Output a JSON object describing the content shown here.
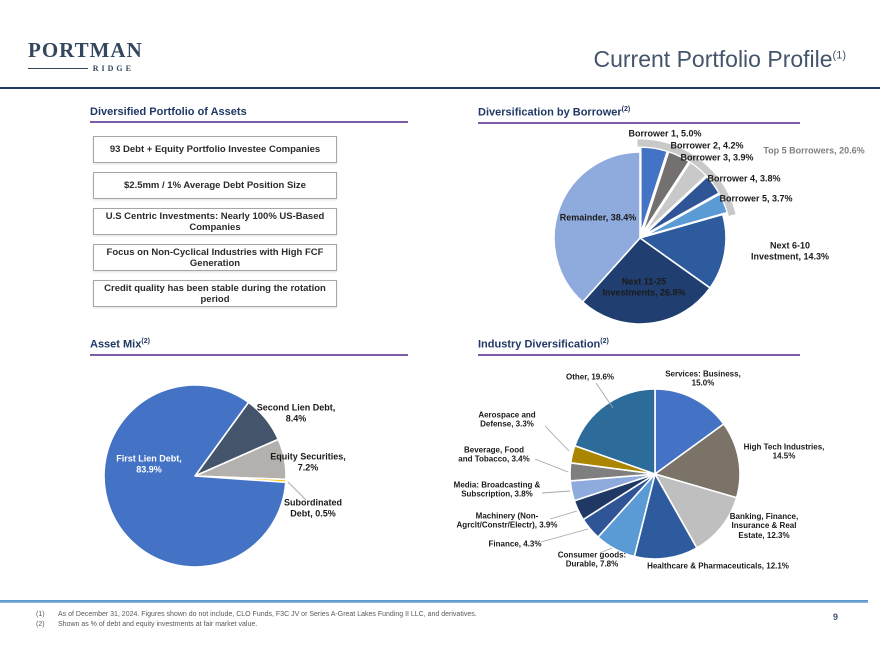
{
  "slide": {
    "logo": {
      "line1": "PORTMAN",
      "line2": "RIDGE"
    },
    "title": {
      "text": "Current Portfolio Profile",
      "superscript": "(1)"
    },
    "page_number": "9",
    "footnotes": [
      {
        "marker": "(1)",
        "text": "As of December 31, 2024. Figures shown do not include, CLO Funds, F3C JV or Series A-Great Lakes Funding II LLC, and derivatives."
      },
      {
        "marker": "(2)",
        "text": "Shown as % of debt and equity investments at fair market value."
      }
    ]
  },
  "sections": {
    "portfolio": {
      "heading": "Diversified Portfolio of Assets",
      "boxes": [
        "93 Debt + Equity Portfolio Investee Companies",
        "$2.5mm / 1% Average Debt Position Size",
        "U.S Centric Investments: Nearly 100% US-Based Companies",
        "Focus on Non-Cyclical Industries with High FCF Generation",
        "Credit quality has been stable during the rotation period"
      ]
    },
    "borrower": {
      "heading": "Diversification by Borrower",
      "superscript": "(2)"
    },
    "asset_mix": {
      "heading": "Asset Mix",
      "superscript": "(2)"
    },
    "industry": {
      "heading": "Industry Diversification",
      "superscript": "(2)"
    }
  },
  "colors": {
    "header_rule": "#24395e",
    "heading_text": "#1f3864",
    "heading_underline": "#7a5da6",
    "footer_rule": "#5b9bd5",
    "title_text": "#44546a",
    "footnote_text": "#595959",
    "annotation_gray": "#7f7f7f",
    "box_border": "#a6a6a6"
  },
  "chart_data": [
    {
      "id": "borrower",
      "type": "pie",
      "title": "Diversification by Borrower",
      "start_angle": 0,
      "slices": [
        {
          "label": "Borrower 1",
          "value": 5.0,
          "color": "#4472c4"
        },
        {
          "label": "Borrower 2",
          "value": 4.2,
          "color": "#757070"
        },
        {
          "label": "Borrower 3",
          "value": 3.9,
          "color": "#c9c9c9"
        },
        {
          "label": "Borrower 4",
          "value": 3.8,
          "color": "#2f5597"
        },
        {
          "label": "Borrower 5",
          "value": 3.7,
          "color": "#5b9bd5"
        },
        {
          "label": "Next 6-10 Investment",
          "value": 14.3,
          "color": "#2e5b9e"
        },
        {
          "label": "Next 11-25 Investments",
          "value": 26.8,
          "color": "#203e6f"
        },
        {
          "label": "Remainder",
          "value": 38.4,
          "color": "#8faadc"
        }
      ],
      "annotations": [
        "Top 5 Borrowers, 20.6%"
      ]
    },
    {
      "id": "asset_mix",
      "type": "pie",
      "title": "Asset Mix",
      "start_angle": 36,
      "slices": [
        {
          "label": "Second Lien Debt",
          "value": 8.4,
          "color": "#44546a"
        },
        {
          "label": "Equity Securities",
          "value": 7.2,
          "color": "#b3b0ae"
        },
        {
          "label": "Subordinated Debt",
          "value": 0.5,
          "color": "#ffc000"
        },
        {
          "label": "First Lien Debt",
          "value": 83.9,
          "color": "#4472c4"
        }
      ]
    },
    {
      "id": "industry",
      "type": "pie",
      "title": "Industry Diversification",
      "start_angle": 0,
      "slices": [
        {
          "label": "Services: Business",
          "value": 15.0,
          "color": "#4472c4"
        },
        {
          "label": "High Tech Industries",
          "value": 14.5,
          "color": "#7b7268"
        },
        {
          "label": "Banking, Finance, Insurance & Real Estate",
          "value": 12.3,
          "color": "#bfbfbf"
        },
        {
          "label": "Healthcare & Pharmaceuticals",
          "value": 12.1,
          "color": "#2e5b9e"
        },
        {
          "label": "Consumer goods: Durable",
          "value": 7.8,
          "color": "#5b9bd5"
        },
        {
          "label": "Finance",
          "value": 4.3,
          "color": "#2f5597"
        },
        {
          "label": "Machinery (Non-Agrclt/Constr/Electr)",
          "value": 3.9,
          "color": "#203864"
        },
        {
          "label": "Media: Broadcasting & Subscription",
          "value": 3.8,
          "color": "#8faadc"
        },
        {
          "label": "Beverage, Food and Tobacco",
          "value": 3.4,
          "color": "#7f7f7f"
        },
        {
          "label": "Aerospace and Defense",
          "value": 3.3,
          "color": "#aa8500"
        },
        {
          "label": "Other",
          "value": 19.6,
          "color": "#2d6b9a"
        }
      ]
    }
  ]
}
